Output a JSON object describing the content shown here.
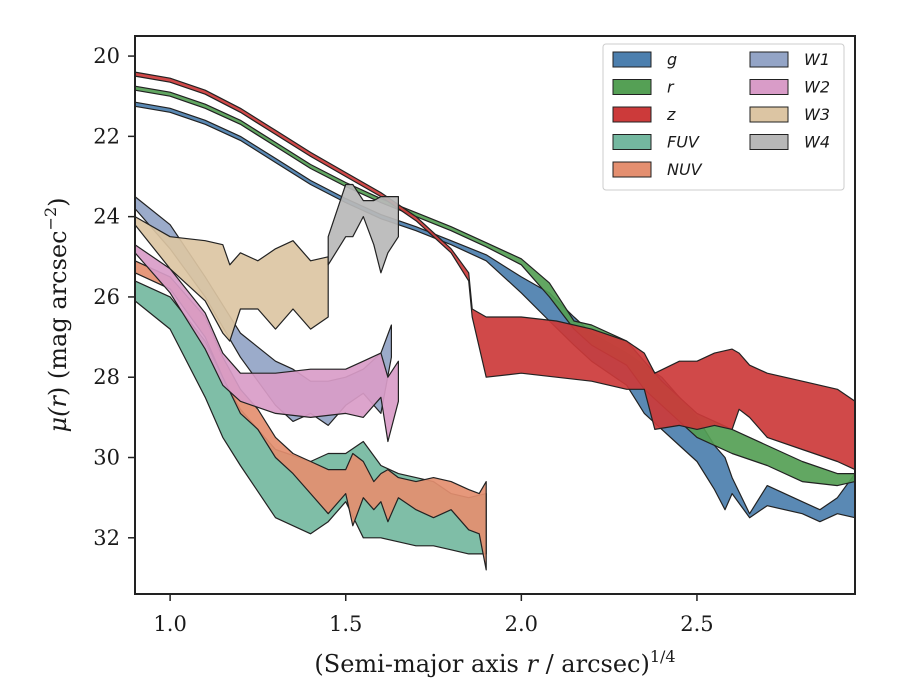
{
  "chart_data": {
    "type": "area",
    "xlabel_main": "(Semi-major axis ",
    "xlabel_var": "r",
    "xlabel_tail": " / arcsec)",
    "xlabel_sup": "1/4",
    "ylabel_mu": "μ(",
    "ylabel_var": "r",
    "ylabel_tail": ") (mag arcsec",
    "ylabel_sup": "−2",
    "ylabel_close": ")",
    "xlim": [
      0.9,
      2.95
    ],
    "ylim": [
      33.4,
      19.5
    ],
    "y_inverted": true,
    "x_ticks": [
      1.0,
      1.5,
      2.0,
      2.5
    ],
    "x_tick_labels": [
      "1.0",
      "1.5",
      "2.0",
      "2.5"
    ],
    "y_ticks": [
      20,
      22,
      24,
      26,
      28,
      30,
      32
    ],
    "y_tick_labels": [
      "20",
      "22",
      "24",
      "26",
      "28",
      "30",
      "32"
    ],
    "legend_position": "top-right",
    "legend_columns": 2,
    "series": [
      {
        "name": "g",
        "color": "#4c7fae",
        "x": [
          0.9,
          1.0,
          1.1,
          1.2,
          1.3,
          1.4,
          1.5,
          1.6,
          1.7,
          1.8,
          1.9,
          2.0,
          2.08,
          2.15,
          2.2,
          2.3,
          2.35,
          2.4,
          2.45,
          2.5,
          2.55,
          2.58,
          2.6,
          2.65,
          2.7,
          2.8,
          2.85,
          2.9,
          2.95
        ],
        "lower": [
          21.15,
          21.3,
          21.6,
          22.0,
          22.55,
          23.1,
          23.55,
          23.95,
          24.25,
          24.6,
          24.95,
          25.5,
          25.9,
          26.5,
          26.9,
          27.4,
          27.7,
          28.0,
          28.5,
          29.0,
          29.7,
          30.0,
          30.5,
          31.4,
          30.7,
          31.1,
          31.3,
          31.0,
          30.4
        ],
        "upper": [
          21.25,
          21.4,
          21.7,
          22.1,
          22.65,
          23.2,
          23.65,
          24.05,
          24.35,
          24.7,
          25.1,
          25.9,
          26.6,
          27.2,
          27.6,
          28.2,
          28.9,
          29.3,
          29.7,
          30.1,
          30.8,
          31.3,
          30.9,
          31.5,
          31.2,
          31.4,
          31.6,
          31.4,
          31.5
        ]
      },
      {
        "name": "r",
        "color": "#55a055",
        "x": [
          0.9,
          1.0,
          1.1,
          1.2,
          1.3,
          1.4,
          1.5,
          1.6,
          1.7,
          1.8,
          1.9,
          2.0,
          2.08,
          2.15,
          2.2,
          2.3,
          2.35,
          2.4,
          2.5,
          2.6,
          2.7,
          2.8,
          2.9,
          2.95
        ],
        "lower": [
          20.75,
          20.9,
          21.2,
          21.6,
          22.15,
          22.7,
          23.15,
          23.55,
          23.9,
          24.25,
          24.65,
          25.05,
          25.65,
          26.6,
          26.7,
          27.1,
          27.6,
          28.1,
          28.9,
          29.3,
          29.7,
          30.1,
          30.4,
          30.4
        ],
        "upper": [
          20.85,
          21.0,
          21.3,
          21.7,
          22.25,
          22.8,
          23.25,
          23.65,
          24.0,
          24.35,
          24.75,
          25.2,
          26.0,
          26.8,
          27.2,
          27.7,
          28.3,
          28.7,
          29.5,
          29.9,
          30.2,
          30.6,
          30.7,
          30.6
        ]
      },
      {
        "name": "z",
        "color": "#cc3a3a",
        "x": [
          0.9,
          1.0,
          1.1,
          1.2,
          1.3,
          1.4,
          1.5,
          1.6,
          1.7,
          1.8,
          1.85,
          1.86,
          1.9,
          2.0,
          2.1,
          2.2,
          2.3,
          2.35,
          2.38,
          2.45,
          2.5,
          2.55,
          2.6,
          2.62,
          2.65,
          2.7,
          2.8,
          2.9,
          2.95
        ],
        "lower": [
          20.4,
          20.55,
          20.85,
          21.3,
          21.85,
          22.4,
          22.9,
          23.4,
          24.0,
          24.8,
          25.4,
          26.3,
          26.5,
          26.5,
          26.6,
          26.8,
          27.1,
          27.4,
          27.9,
          27.6,
          27.6,
          27.4,
          27.3,
          27.4,
          27.7,
          27.9,
          28.1,
          28.3,
          28.6
        ],
        "upper": [
          20.5,
          20.65,
          20.95,
          21.4,
          21.95,
          22.5,
          23.0,
          23.5,
          24.1,
          24.9,
          25.6,
          26.5,
          28.0,
          27.9,
          28.0,
          28.1,
          28.3,
          28.3,
          29.3,
          29.2,
          29.3,
          29.2,
          29.3,
          28.8,
          29.0,
          29.5,
          29.8,
          30.1,
          30.3
        ]
      },
      {
        "name": "FUV",
        "color": "#74b8a0",
        "x": [
          0.9,
          1.0,
          1.1,
          1.15,
          1.2,
          1.3,
          1.4,
          1.45,
          1.5,
          1.55,
          1.6,
          1.65,
          1.7,
          1.75,
          1.8,
          1.85,
          1.9
        ],
        "lower": [
          25.6,
          26.0,
          27.1,
          28.0,
          28.8,
          29.8,
          30.1,
          29.9,
          29.9,
          29.6,
          30.2,
          30.4,
          30.5,
          30.6,
          30.9,
          31.0,
          30.9
        ],
        "upper": [
          26.1,
          26.8,
          28.5,
          29.5,
          30.2,
          31.5,
          31.9,
          31.6,
          31.1,
          32.0,
          32.0,
          32.1,
          32.2,
          32.2,
          32.3,
          32.4,
          32.4
        ]
      },
      {
        "name": "NUV",
        "color": "#e48f70",
        "x": [
          0.9,
          1.0,
          1.1,
          1.15,
          1.2,
          1.25,
          1.3,
          1.35,
          1.4,
          1.45,
          1.5,
          1.52,
          1.55,
          1.58,
          1.6,
          1.62,
          1.65,
          1.7,
          1.75,
          1.8,
          1.85,
          1.88,
          1.9
        ],
        "lower": [
          25.1,
          25.5,
          26.5,
          27.5,
          28.3,
          28.8,
          29.5,
          29.9,
          30.1,
          30.3,
          30.3,
          29.9,
          30.1,
          30.6,
          30.4,
          30.3,
          30.5,
          30.6,
          30.5,
          30.6,
          30.8,
          30.9,
          30.6
        ],
        "upper": [
          25.4,
          25.8,
          27.0,
          28.0,
          28.9,
          29.3,
          30.0,
          30.4,
          30.9,
          31.4,
          30.9,
          31.7,
          31.0,
          31.3,
          31.1,
          31.6,
          31.0,
          31.3,
          31.5,
          31.3,
          31.8,
          31.9,
          32.8
        ]
      },
      {
        "name": "W1",
        "color": "#93a4c6",
        "x": [
          0.9,
          1.0,
          1.1,
          1.2,
          1.3,
          1.35,
          1.4,
          1.45,
          1.5,
          1.55,
          1.6,
          1.63
        ],
        "lower": [
          23.5,
          24.2,
          25.5,
          26.9,
          27.6,
          27.8,
          28.1,
          28.1,
          28.0,
          27.8,
          27.4,
          26.7
        ],
        "upper": [
          23.8,
          24.8,
          26.0,
          27.5,
          28.7,
          29.1,
          28.9,
          29.2,
          28.7,
          28.4,
          28.9,
          27.5
        ]
      },
      {
        "name": "W2",
        "color": "#d99cc8",
        "x": [
          0.9,
          1.0,
          1.1,
          1.15,
          1.2,
          1.3,
          1.4,
          1.5,
          1.55,
          1.6,
          1.62,
          1.65
        ],
        "lower": [
          24.7,
          25.3,
          26.4,
          27.4,
          27.9,
          27.9,
          27.8,
          27.8,
          27.6,
          27.4,
          28.0,
          27.6
        ],
        "upper": [
          24.9,
          25.9,
          27.3,
          28.2,
          28.6,
          28.9,
          29.0,
          28.9,
          29.0,
          28.5,
          29.6,
          28.6
        ]
      },
      {
        "name": "W3",
        "color": "#dcc5a3",
        "x": [
          0.9,
          1.0,
          1.1,
          1.15,
          1.17,
          1.2,
          1.25,
          1.3,
          1.35,
          1.4,
          1.45
        ],
        "lower": [
          24.0,
          24.5,
          24.6,
          24.7,
          25.2,
          24.9,
          25.1,
          24.8,
          24.6,
          25.1,
          25.0
        ],
        "upper": [
          24.2,
          25.3,
          26.1,
          26.9,
          27.1,
          26.3,
          26.3,
          26.8,
          26.3,
          26.8,
          26.5
        ]
      },
      {
        "name": "W4",
        "color": "#b8b8b8",
        "x": [
          1.45,
          1.5,
          1.52,
          1.55,
          1.58,
          1.6,
          1.62,
          1.65
        ],
        "lower": [
          24.5,
          23.2,
          23.2,
          23.6,
          23.6,
          23.5,
          23.5,
          23.5
        ],
        "upper": [
          25.2,
          24.5,
          24.5,
          24.0,
          24.7,
          25.4,
          24.9,
          24.5
        ]
      }
    ]
  }
}
